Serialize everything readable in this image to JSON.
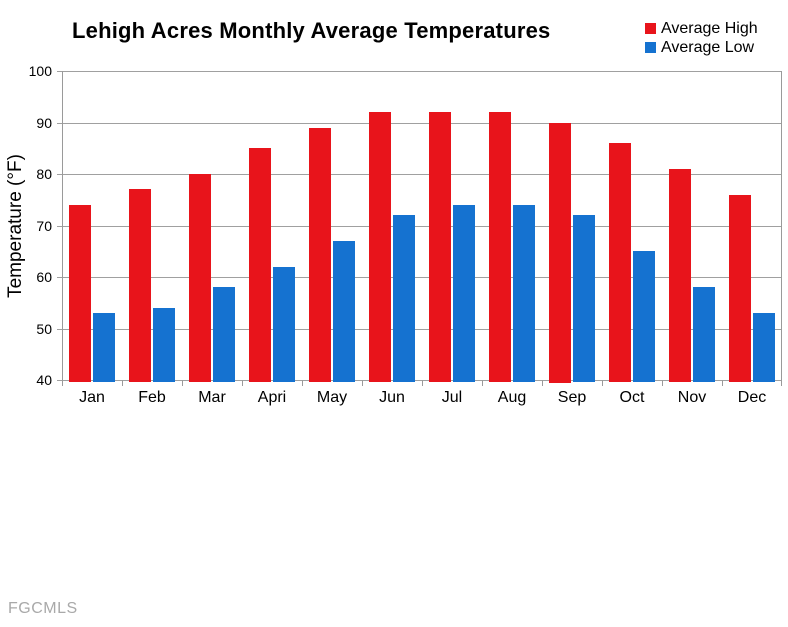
{
  "title": "Lehigh Acres Monthly Average Temperatures",
  "watermark": "FGCMLS",
  "colors": {
    "high": "#e8141b",
    "low": "#1572d0",
    "gridline": "#a0a0a0",
    "axis": "#9a9a9a",
    "text": "#000000",
    "watermark": "#a9a9a9"
  },
  "chart_data": {
    "type": "bar",
    "title": "Lehigh Acres Monthly Average Temperatures",
    "categories": [
      "Jan",
      "Feb",
      "Mar",
      "Apri",
      "May",
      "Jun",
      "Jul",
      "Aug",
      "Sep",
      "Oct",
      "Nov",
      "Dec"
    ],
    "series": [
      {
        "name": "Average High",
        "color": "#e8141b",
        "values": [
          74,
          77,
          80,
          85,
          89,
          92,
          92,
          92,
          90,
          86,
          81,
          76
        ]
      },
      {
        "name": "Average Low",
        "color": "#1572d0",
        "values": [
          53,
          54,
          58,
          62,
          67,
          72,
          74,
          74,
          72,
          65,
          58,
          53
        ]
      }
    ],
    "xlabel": "",
    "ylabel": "Temperature (°F)",
    "ylim": [
      40,
      100
    ],
    "yticks": [
      40,
      50,
      60,
      70,
      80,
      90,
      100
    ],
    "grid": true,
    "legend_position": "top-right"
  }
}
